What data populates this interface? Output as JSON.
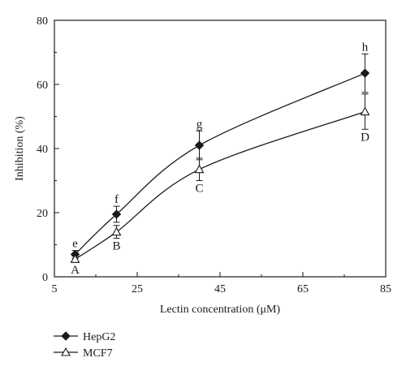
{
  "chart_data": {
    "type": "line",
    "xlabel": "Lectin concentration (μM)",
    "ylabel": "Inhibition (%)",
    "xlim": [
      5,
      85
    ],
    "ylim": [
      0,
      80
    ],
    "xticks": [
      5,
      25,
      45,
      65,
      85
    ],
    "yticks": [
      0,
      20,
      40,
      60,
      80
    ],
    "x": [
      10,
      20,
      40,
      80
    ],
    "grid": false,
    "legend_position": "bottom-left",
    "series": [
      {
        "name": "HepG2",
        "marker": "filled-diamond",
        "values": [
          7,
          19.5,
          41,
          63.5
        ],
        "errors": [
          1.2,
          2.5,
          4.5,
          6
        ],
        "letters": [
          "e",
          "f",
          "g",
          "h"
        ],
        "color": "#1a1a1a"
      },
      {
        "name": "MCF7",
        "marker": "open-triangle",
        "values": [
          5.5,
          14,
          33.5,
          51.5
        ],
        "errors": [
          1,
          2,
          3.5,
          5.5
        ],
        "letters": [
          "A",
          "B",
          "C",
          "D"
        ],
        "color": "#1a1a1a"
      }
    ]
  }
}
